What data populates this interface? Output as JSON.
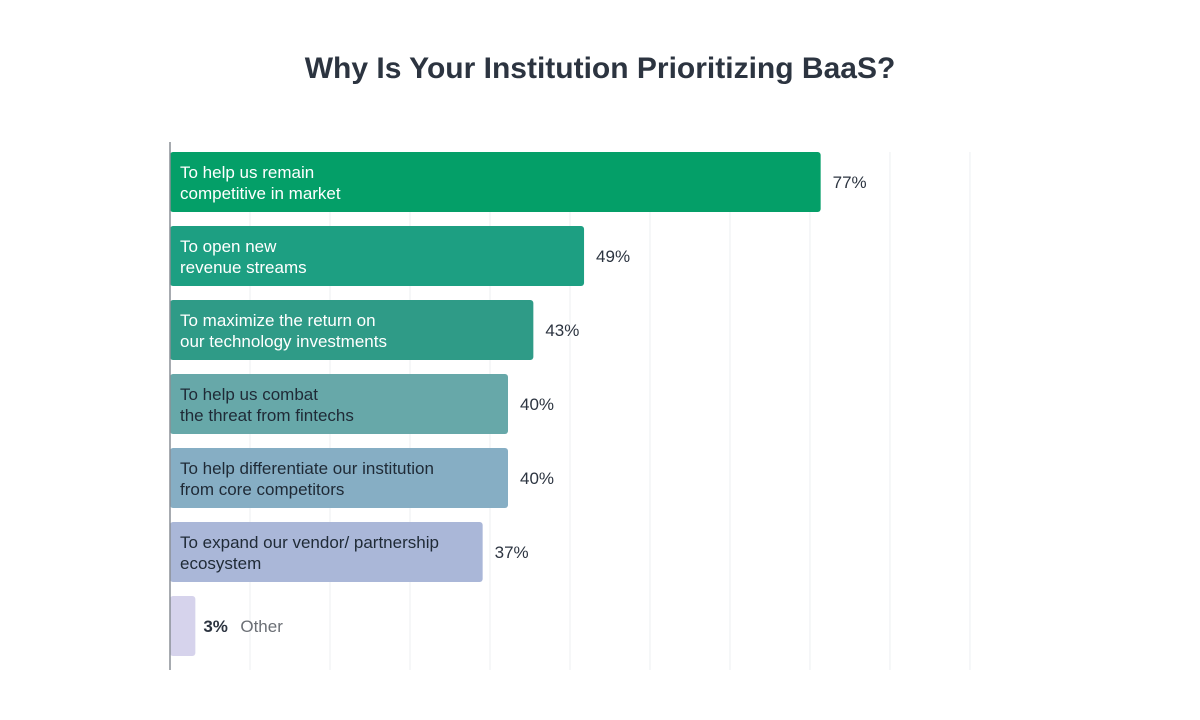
{
  "chart_data": {
    "type": "bar",
    "orientation": "horizontal",
    "title": "Why Is Your Institution Prioritizing BaaS?",
    "xlim": [
      0,
      100
    ],
    "grid": true,
    "legend": "none",
    "categories": [
      [
        "To help us remain",
        "competitive in market"
      ],
      [
        "To open new",
        "revenue streams"
      ],
      [
        "To maximize the return on",
        "our technology investments"
      ],
      [
        "To help us combat",
        "the threat from fintechs"
      ],
      [
        "To help differentiate our institution",
        "from core competitors"
      ],
      [
        "To expand our vendor/ partnership",
        "ecosystem"
      ],
      [
        "Other"
      ]
    ],
    "values": [
      77,
      49,
      43,
      40,
      40,
      37,
      3
    ],
    "value_labels": [
      "77%",
      "49%",
      "43%",
      "40%",
      "40%",
      "37%",
      "3%"
    ],
    "colors": [
      "#049f68",
      "#1d9f82",
      "#2f9b87",
      "#67a8a9",
      "#86aec4",
      "#aab7d8",
      "#d6d3ec"
    ],
    "label_colors": [
      "#ffffff",
      "#ffffff",
      "#ffffff",
      "#1f2a36",
      "#1f2a36",
      "#1f2a36",
      "#6b6f75"
    ]
  }
}
